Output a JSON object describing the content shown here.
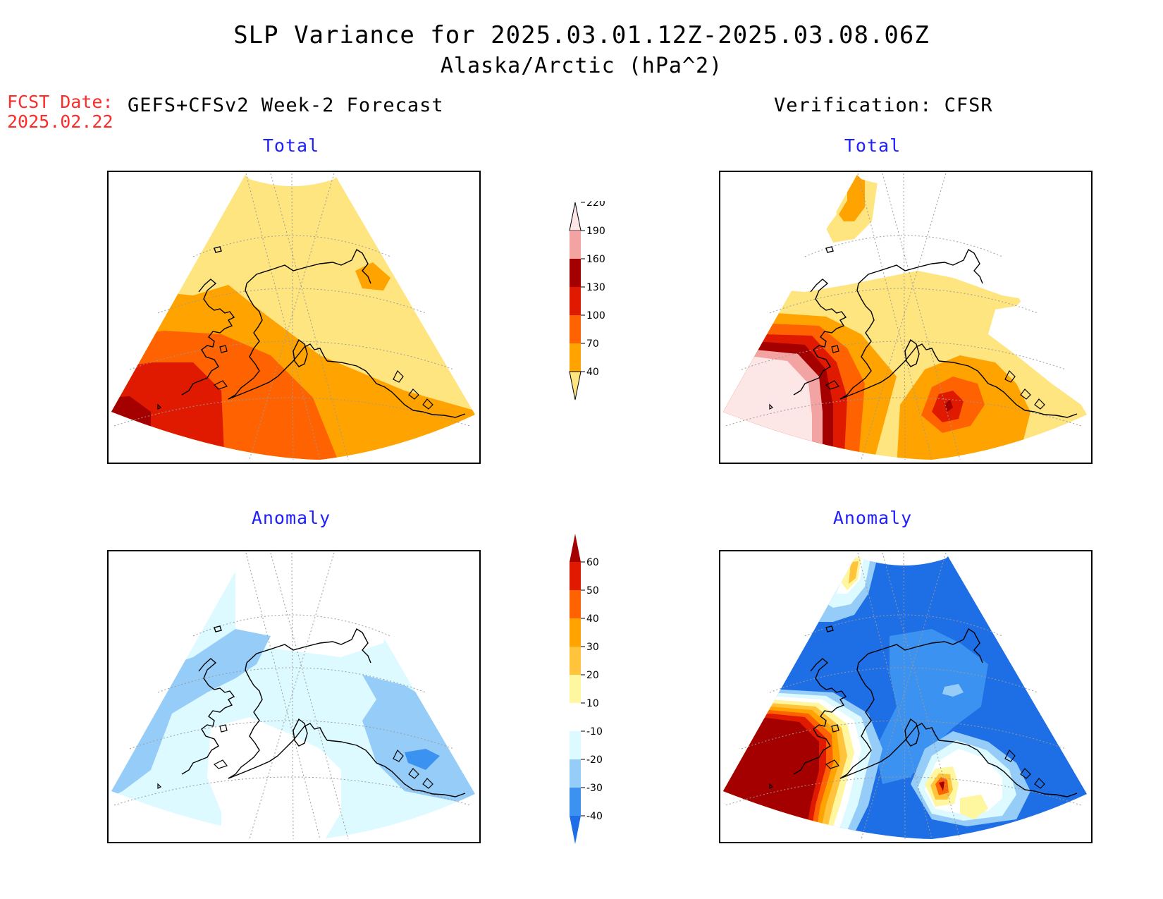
{
  "title": {
    "line1": "SLP Variance for 2025.03.01.12Z-2025.03.08.06Z",
    "line2": "Alaska/Arctic (hPa^2)"
  },
  "fcst_date": {
    "label": "FCST Date:",
    "value": "2025.02.22"
  },
  "left_header": "GEFS+CFSv2 Week-2 Forecast",
  "right_header": "Verification: CFSR",
  "panels": {
    "forecast_total": {
      "title": "Total"
    },
    "verification_total": {
      "title": "Total"
    },
    "forecast_anomaly": {
      "title": "Anomaly"
    },
    "verification_anomaly": {
      "title": "Anomaly"
    }
  },
  "colorbars": {
    "total": {
      "labels": [
        "40",
        "70",
        "100",
        "130",
        "160",
        "190",
        "220"
      ],
      "colors": [
        "#ffe57f",
        "#ffa300",
        "#ff6200",
        "#e01a00",
        "#a50000",
        "#f4a3a3",
        "#fde6e6"
      ]
    },
    "anomaly": {
      "labels": [
        "-40",
        "-30",
        "-20",
        "-10",
        "10",
        "20",
        "30",
        "40",
        "50",
        "60"
      ],
      "colors": [
        "#1e6ee6",
        "#3c92f0",
        "#96cdf8",
        "#dcfaff",
        "#ffffff",
        "#fff6a0",
        "#ffc43c",
        "#ffa300",
        "#ff6200",
        "#e01a00",
        "#a50000"
      ]
    }
  }
}
